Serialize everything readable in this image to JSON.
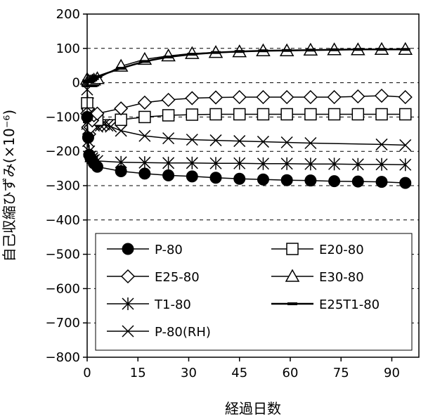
{
  "chart_data": {
    "type": "line",
    "title": "",
    "xlabel": "経過日数",
    "ylabel": "自己収縮ひずみ(×10⁻⁶)",
    "xlim": [
      0,
      98
    ],
    "ylim": [
      -800,
      200
    ],
    "x_ticks": [
      "0",
      "15",
      "30",
      "45",
      "60",
      "75",
      "90"
    ],
    "y_ticks": [
      "200",
      "100",
      "0",
      "-100",
      "-200",
      "-300",
      "-400",
      "-500",
      "-600",
      "-700",
      "-800"
    ],
    "grid": "horizontal dashed",
    "legend_position": "lower",
    "series": [
      {
        "name": "P-80",
        "marker": "filled-circle",
        "x": [
          0,
          0.3,
          0.6,
          1,
          1.5,
          2,
          3,
          10,
          17,
          24,
          31,
          38,
          45,
          52,
          59,
          66,
          73,
          80,
          87,
          94
        ],
        "y": [
          -100,
          -160,
          -210,
          -220,
          -225,
          -235,
          -245,
          -258,
          -265,
          -270,
          -273,
          -277,
          -280,
          -282,
          -284,
          -285,
          -287,
          -288,
          -289,
          -292
        ]
      },
      {
        "name": "E20-80",
        "marker": "open-square",
        "x": [
          0,
          0.3,
          0.6,
          1,
          1.5,
          2,
          3,
          10,
          17,
          24,
          31,
          38,
          45,
          52,
          59,
          66,
          73,
          80,
          87,
          94
        ],
        "y": [
          -60,
          -90,
          -100,
          -103,
          -105,
          -106,
          -108,
          -108,
          -100,
          -95,
          -93,
          -92,
          -92,
          -92,
          -92,
          -92,
          -92,
          -92,
          -92,
          -92
        ]
      },
      {
        "name": "E25-80",
        "marker": "open-diamond",
        "x": [
          0,
          0.3,
          0.6,
          1,
          1.5,
          2,
          3,
          10,
          17,
          24,
          31,
          38,
          45,
          52,
          59,
          66,
          73,
          80,
          87,
          94
        ],
        "y": [
          -90,
          -130,
          -150,
          -130,
          -110,
          -95,
          -90,
          -75,
          -58,
          -50,
          -45,
          -43,
          -42,
          -42,
          -42,
          -42,
          -42,
          -40,
          -38,
          -42
        ]
      },
      {
        "name": "E30-80",
        "marker": "open-triangle",
        "x": [
          0,
          0.3,
          0.6,
          1,
          1.5,
          2,
          3,
          10,
          17,
          24,
          31,
          38,
          45,
          52,
          59,
          66,
          73,
          80,
          87,
          94
        ],
        "y": [
          10,
          5,
          3,
          3,
          5,
          8,
          12,
          48,
          68,
          78,
          85,
          88,
          90,
          93,
          93,
          95,
          96,
          96,
          97,
          97
        ]
      },
      {
        "name": "T1-80",
        "marker": "asterisk",
        "x": [
          0,
          0.3,
          0.6,
          1,
          1.5,
          2,
          3,
          10,
          17,
          24,
          31,
          38,
          45,
          52,
          59,
          66,
          73,
          80,
          87,
          94
        ],
        "y": [
          -120,
          -170,
          -200,
          -215,
          -220,
          -225,
          -228,
          -232,
          -233,
          -234,
          -234,
          -235,
          -235,
          -236,
          -236,
          -237,
          -237,
          -238,
          -238,
          -239
        ]
      },
      {
        "name": "E25T1-80",
        "marker": "dash",
        "x": [
          0,
          0.3,
          0.6,
          1,
          1.5,
          2,
          3,
          10,
          17,
          24,
          31,
          38,
          45,
          52,
          59,
          66,
          73,
          80,
          87,
          94
        ],
        "y": [
          5,
          3,
          3,
          5,
          8,
          12,
          18,
          42,
          62,
          75,
          83,
          88,
          91,
          93,
          94,
          95,
          96,
          97,
          97,
          97
        ]
      },
      {
        "name": "P-80(RH)",
        "marker": "cross",
        "x": [
          0,
          0.3,
          0.6,
          1,
          1.5,
          2,
          3,
          4,
          5,
          6,
          7,
          10,
          17,
          24,
          31,
          38,
          45,
          52,
          59,
          66,
          87,
          94
        ],
        "y": [
          -20,
          -60,
          -90,
          -110,
          -120,
          -125,
          -128,
          -125,
          -122,
          -125,
          -128,
          -140,
          -155,
          -162,
          -166,
          -168,
          -170,
          -172,
          -174,
          -176,
          -180,
          -182
        ]
      }
    ]
  }
}
